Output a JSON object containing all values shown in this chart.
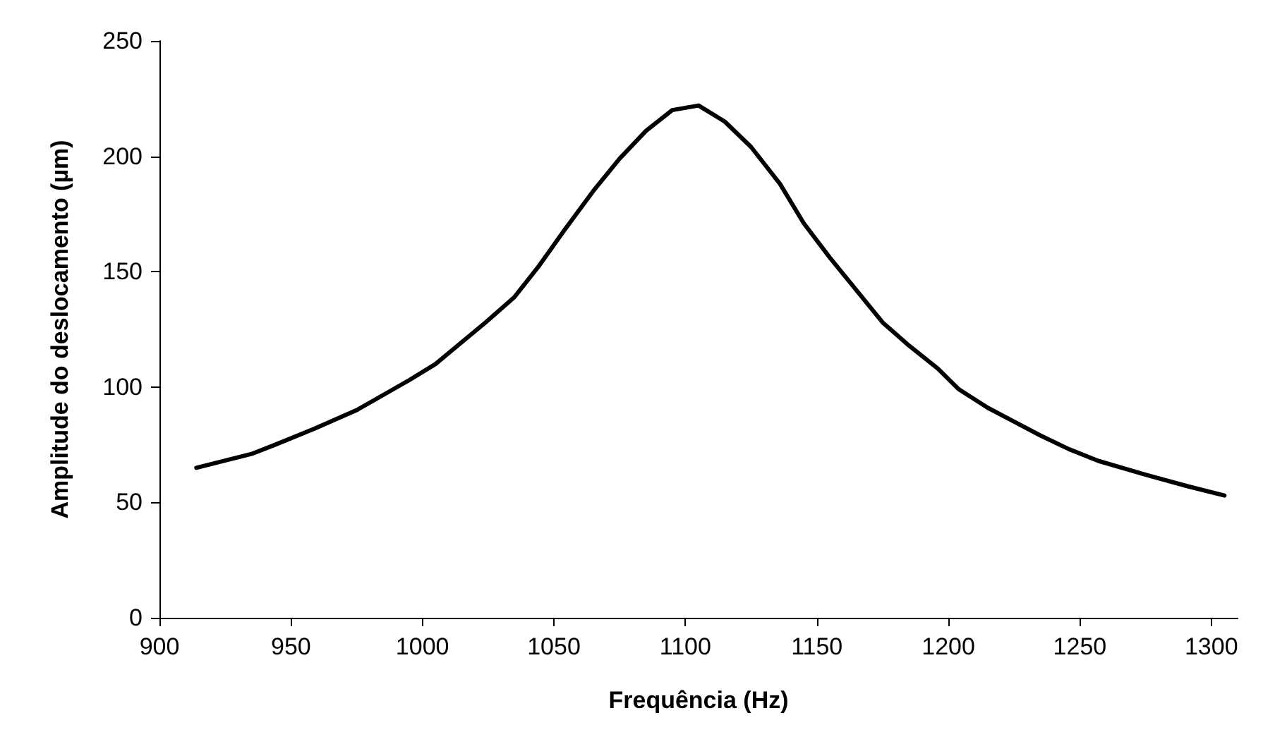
{
  "chart_data": {
    "type": "line",
    "xlabel": "Frequência (Hz)",
    "ylabel": "Amplitude do deslocamento (µm)",
    "x": [
      914,
      935,
      944,
      959,
      975,
      995,
      1005,
      1024,
      1035,
      1044,
      1054,
      1065,
      1075,
      1085,
      1095,
      1105,
      1115,
      1125,
      1136,
      1145,
      1155,
      1165,
      1175,
      1185,
      1196,
      1204,
      1215,
      1225,
      1235,
      1246,
      1257,
      1275,
      1291,
      1305
    ],
    "series": [
      {
        "color": "#000000",
        "values": [
          65,
          71,
          75,
          82,
          90,
          103,
          110,
          128,
          139,
          152,
          168,
          185,
          199,
          211,
          220,
          222,
          215,
          204,
          188,
          171,
          156,
          142,
          128,
          118,
          108,
          99,
          91,
          85,
          79,
          73,
          68,
          62,
          57,
          53
        ]
      }
    ],
    "xlim": [
      900,
      1310
    ],
    "xticks": [
      900,
      950,
      1000,
      1050,
      1100,
      1150,
      1200,
      1250,
      1300
    ],
    "ylim": [
      0,
      250
    ],
    "yticks": [
      0,
      50,
      100,
      150,
      200,
      250
    ],
    "grid": false,
    "marker": "none",
    "line_style": "solid"
  }
}
